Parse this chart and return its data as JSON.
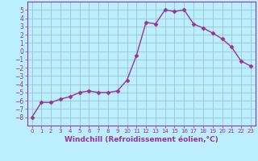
{
  "x": [
    0,
    1,
    2,
    3,
    4,
    5,
    6,
    7,
    8,
    9,
    10,
    11,
    12,
    13,
    14,
    15,
    16,
    17,
    18,
    19,
    20,
    21,
    22,
    23
  ],
  "y": [
    -8,
    -6.2,
    -6.2,
    -5.8,
    -5.5,
    -5.0,
    -4.8,
    -5.0,
    -5.0,
    -4.8,
    -3.5,
    -0.5,
    3.5,
    3.3,
    5.0,
    4.8,
    5.0,
    3.3,
    2.8,
    2.2,
    1.5,
    0.5,
    -1.2,
    -1.8
  ],
  "line_color": "#993399",
  "marker": "D",
  "markersize": 2.5,
  "linewidth": 1.0,
  "bg_color": "#bbeeff",
  "grid_color": "#99bbcc",
  "xlabel": "Windchill (Refroidissement éolien,°C)",
  "xlabel_fontsize": 6.5,
  "xlabel_color": "#993399",
  "tick_color": "#993399",
  "ytick_fontsize": 5.5,
  "xtick_fontsize": 5.0,
  "ylim": [
    -9,
    6
  ],
  "xlim": [
    -0.5,
    23.5
  ],
  "yticks": [
    -8,
    -7,
    -6,
    -5,
    -4,
    -3,
    -2,
    -1,
    0,
    1,
    2,
    3,
    4,
    5
  ],
  "xticks": [
    0,
    1,
    2,
    3,
    4,
    5,
    6,
    7,
    8,
    9,
    10,
    11,
    12,
    13,
    14,
    15,
    16,
    17,
    18,
    19,
    20,
    21,
    22,
    23
  ],
  "spine_color": "#993399",
  "spine_linewidth": 0.8
}
